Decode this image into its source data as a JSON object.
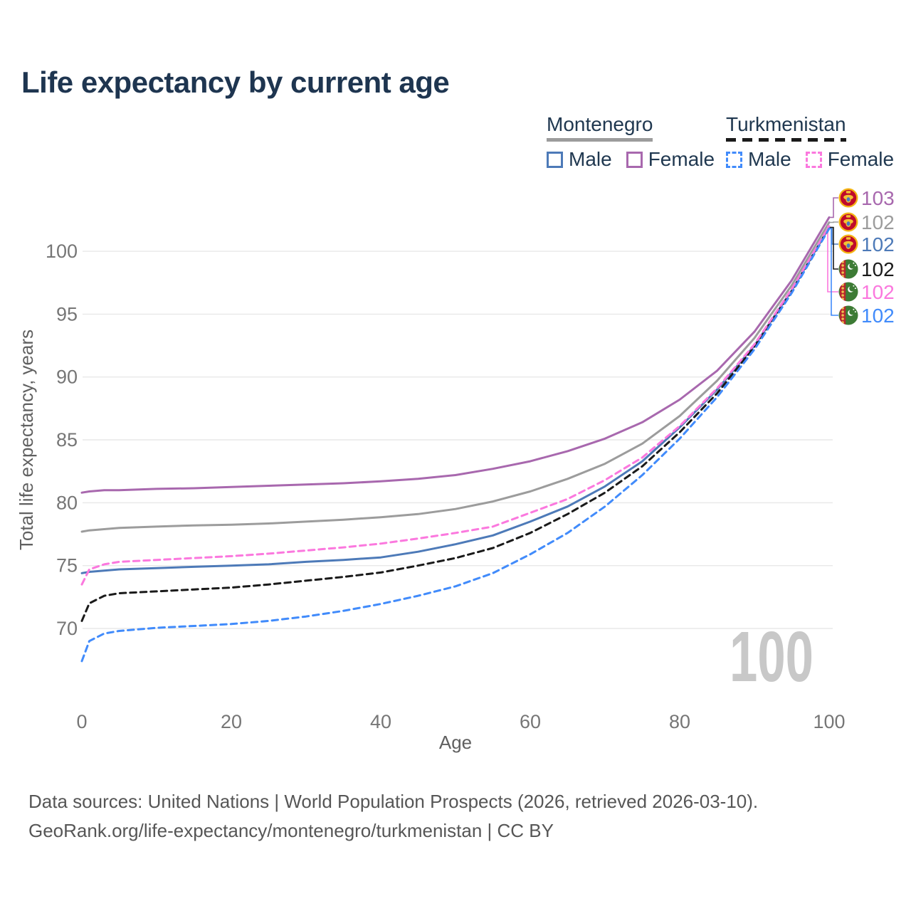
{
  "title": "Life expectancy by current age",
  "palette": {
    "title_color": "#1e3550",
    "tick_color": "#767676",
    "axis_label_color": "#606060",
    "grid_color": "#e8e8e8",
    "footer_color": "#565656",
    "watermark_color": "#c8c8c8",
    "background": "#ffffff"
  },
  "legend": {
    "groups": [
      {
        "name": "Montenegro",
        "underline_style": "solid",
        "underline_color": "#9c9c9c",
        "items": [
          {
            "label": "Male",
            "color": "#4d7ab8",
            "dashed": false
          },
          {
            "label": "Female",
            "color": "#a868ae",
            "dashed": false
          }
        ]
      },
      {
        "name": "Turkmenistan",
        "underline_style": "dashed",
        "underline_color": "#1a1a1a",
        "items": [
          {
            "label": "Male",
            "color": "#418bfb",
            "dashed": true
          },
          {
            "label": "Female",
            "color": "#fb78de",
            "dashed": true
          }
        ]
      }
    ]
  },
  "chart_data": {
    "type": "line",
    "title": "Life expectancy by current age",
    "xlabel": "Age",
    "ylabel": "Total life expectancy, years",
    "x_ticks": [
      0,
      20,
      40,
      60,
      80,
      100
    ],
    "y_ticks": [
      70,
      75,
      80,
      85,
      90,
      95,
      100
    ],
    "xlim": [
      0,
      100
    ],
    "ylim": [
      66.5,
      103.5
    ],
    "grid": "horizontal",
    "legend_position": "top-right",
    "age_cursor": "100",
    "ages": [
      0,
      1,
      3,
      5,
      10,
      15,
      20,
      25,
      30,
      35,
      40,
      45,
      50,
      55,
      60,
      65,
      70,
      75,
      80,
      85,
      90,
      95,
      100
    ],
    "series": [
      {
        "name": "Montenegro Female",
        "country": "Montenegro",
        "sex": "female",
        "flag": "montenegro",
        "color": "#a868ae",
        "dashed": false,
        "end_label": "103",
        "end_label_color": "#a868ae",
        "values": [
          80.8,
          80.9,
          81.0,
          81.0,
          81.1,
          81.15,
          81.25,
          81.35,
          81.45,
          81.55,
          81.7,
          81.9,
          82.2,
          82.7,
          83.3,
          84.1,
          85.1,
          86.4,
          88.2,
          90.5,
          93.6,
          97.7,
          102.7
        ]
      },
      {
        "name": "Montenegro Both sexes",
        "country": "Montenegro",
        "sex": "both",
        "flag": "montenegro",
        "color": "#9c9c9c",
        "dashed": false,
        "end_label": "102",
        "end_label_color": "#9c9c9c",
        "values": [
          77.7,
          77.8,
          77.9,
          78.0,
          78.1,
          78.2,
          78.25,
          78.35,
          78.5,
          78.65,
          78.85,
          79.1,
          79.5,
          80.1,
          80.9,
          81.9,
          83.1,
          84.7,
          86.9,
          89.7,
          93.1,
          97.3,
          102.3
        ]
      },
      {
        "name": "Montenegro Male",
        "country": "Montenegro",
        "sex": "male",
        "flag": "montenegro",
        "color": "#4d7ab8",
        "dashed": false,
        "end_label": "102",
        "end_label_color": "#4d7ab8",
        "values": [
          74.4,
          74.5,
          74.6,
          74.7,
          74.8,
          74.9,
          75.0,
          75.1,
          75.3,
          75.45,
          75.65,
          76.1,
          76.7,
          77.4,
          78.5,
          79.7,
          81.3,
          83.3,
          86.0,
          89.0,
          92.5,
          96.9,
          101.9
        ]
      },
      {
        "name": "Turkmenistan Both sexes",
        "country": "Turkmenistan",
        "sex": "both",
        "flag": "turkmenistan",
        "color": "#1a1a1a",
        "dashed": true,
        "end_label": "102",
        "end_label_color": "#1a1a1a",
        "values": [
          70.6,
          72.0,
          72.6,
          72.8,
          72.95,
          73.1,
          73.25,
          73.5,
          73.8,
          74.1,
          74.45,
          75.0,
          75.6,
          76.4,
          77.6,
          79.1,
          80.8,
          82.9,
          85.6,
          88.7,
          92.4,
          96.8,
          101.9
        ]
      },
      {
        "name": "Turkmenistan Female",
        "country": "Turkmenistan",
        "sex": "female",
        "flag": "turkmenistan",
        "color": "#fb78de",
        "dashed": true,
        "end_label": "102",
        "end_label_color": "#fb78de",
        "values": [
          73.5,
          74.7,
          75.1,
          75.3,
          75.45,
          75.6,
          75.75,
          75.95,
          76.2,
          76.45,
          76.75,
          77.15,
          77.6,
          78.1,
          79.2,
          80.3,
          81.8,
          83.6,
          86.1,
          89.1,
          92.6,
          97.0,
          102.0
        ]
      },
      {
        "name": "Turkmenistan Male",
        "country": "Turkmenistan",
        "sex": "male",
        "flag": "turkmenistan",
        "color": "#418bfb",
        "dashed": true,
        "end_label": "102",
        "end_label_color": "#418bfb",
        "values": [
          67.4,
          69.0,
          69.6,
          69.8,
          70.05,
          70.2,
          70.35,
          70.6,
          70.95,
          71.4,
          71.95,
          72.6,
          73.35,
          74.4,
          75.9,
          77.6,
          79.7,
          82.2,
          85.1,
          88.4,
          92.2,
          96.7,
          101.8
        ]
      }
    ]
  },
  "footer": {
    "line1": "Data sources: United Nations | World Population Prospects (2026, retrieved 2026-03-10).",
    "line2": "GeoRank.org/life-expectancy/montenegro/turkmenistan | CC BY"
  }
}
